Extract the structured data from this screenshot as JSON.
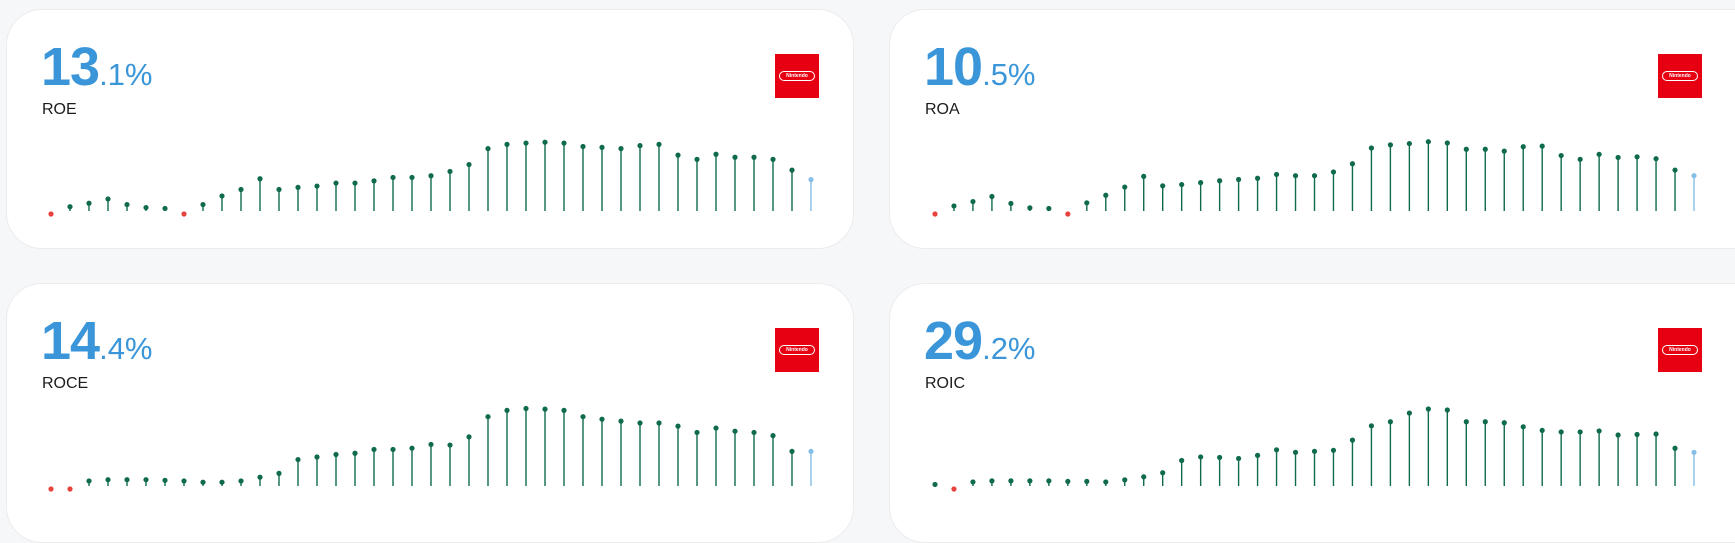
{
  "colors": {
    "value": "#3b96d9",
    "bar": "#0f6b4a",
    "bar_current": "#86bfe6",
    "negative": "#e8423c",
    "logo_bg": "#e60012"
  },
  "cards": [
    {
      "value_int": "13",
      "value_dec": ".1%",
      "label": "ROE",
      "logo_text": "Nintendo",
      "logo_icon": "nintendo-logo-icon",
      "chart_data": {
        "type": "lollipop",
        "values": [
          -1.5,
          1.0,
          1.8,
          2.8,
          1.5,
          0.8,
          0.6,
          -1.8,
          1.5,
          3.5,
          5.0,
          7.5,
          5.0,
          5.5,
          5.8,
          6.5,
          6.5,
          7.0,
          7.8,
          7.8,
          8.2,
          9.2,
          10.8,
          14.5,
          15.5,
          15.8,
          16.0,
          15.8,
          15.0,
          14.8,
          14.5,
          15.2,
          15.5,
          13.0,
          12.0,
          13.2,
          12.5,
          12.5,
          12.0,
          9.5,
          7.3
        ],
        "negative_values": [
          -1.5,
          -1.8
        ],
        "current_index": 40
      }
    },
    {
      "value_int": "10",
      "value_dec": ".5%",
      "label": "ROA",
      "logo_text": "Nintendo",
      "logo_icon": "nintendo-logo-icon",
      "chart_data": {
        "type": "lollipop",
        "values": [
          -1.3,
          0.8,
          1.5,
          2.3,
          1.2,
          0.5,
          0.4,
          -1.5,
          1.3,
          2.5,
          3.8,
          5.5,
          4.0,
          4.2,
          4.5,
          4.8,
          5.0,
          5.2,
          5.8,
          5.6,
          5.6,
          6.2,
          7.5,
          10.0,
          10.5,
          10.7,
          11.0,
          10.8,
          9.8,
          9.8,
          9.5,
          10.2,
          10.3,
          8.8,
          8.2,
          9.0,
          8.5,
          8.6,
          8.3,
          6.5,
          5.6
        ],
        "negative_values": [
          -1.3,
          -1.5
        ],
        "current_index": 40
      }
    },
    {
      "value_int": "14",
      "value_dec": ".4%",
      "label": "ROCE",
      "logo_text": "Nintendo",
      "logo_icon": "nintendo-logo-icon",
      "chart_data": {
        "type": "lollipop",
        "values": [
          -0.3,
          -0.2,
          0.8,
          1.0,
          1.0,
          1.0,
          0.9,
          0.8,
          0.6,
          0.6,
          0.8,
          1.4,
          2.0,
          4.2,
          4.6,
          5.0,
          5.2,
          5.8,
          5.8,
          6.0,
          6.6,
          6.5,
          7.8,
          11.0,
          12.0,
          12.3,
          12.2,
          12.0,
          11.0,
          10.6,
          10.3,
          10.0,
          10.0,
          9.5,
          8.5,
          9.2,
          8.7,
          8.5,
          8.0,
          5.5,
          5.5
        ],
        "negative_values": [
          -0.3,
          -0.2
        ],
        "current_index": 40
      }
    },
    {
      "value_int": "29",
      "value_dec": ".2%",
      "label": "ROIC",
      "logo_text": "Nintendo",
      "logo_icon": "nintendo-logo-icon",
      "chart_data": {
        "type": "lollipop",
        "values": [
          0.3,
          -0.1,
          0.8,
          1.0,
          1.0,
          1.0,
          1.0,
          0.9,
          0.9,
          0.8,
          1.2,
          1.8,
          2.6,
          5.0,
          5.7,
          5.6,
          5.4,
          6.0,
          7.1,
          6.6,
          6.8,
          7.0,
          9.0,
          11.8,
          12.6,
          14.3,
          15.1,
          14.9,
          12.6,
          12.6,
          12.4,
          11.6,
          10.9,
          10.6,
          10.6,
          10.8,
          10.0,
          10.1,
          10.2,
          7.4,
          6.6
        ],
        "negative_values": [
          -0.1
        ],
        "current_index": 40
      }
    }
  ]
}
